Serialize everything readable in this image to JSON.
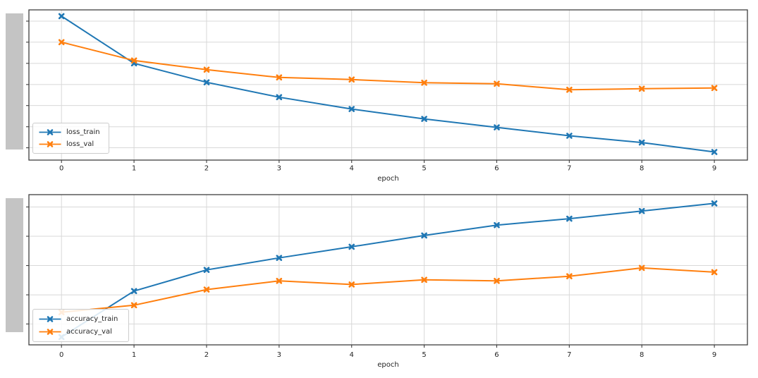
{
  "figure": {
    "background": "#ffffff",
    "colors": {
      "train_series": "#1f77b4",
      "val_series": "#ff7f0e",
      "grid": "#d8d8d8",
      "spine": "#3f3f3f",
      "tick_text": "#262626",
      "legend_border": "#cccccc",
      "redaction_bar": "#c4c4c4"
    }
  },
  "chart_data": [
    {
      "name": "loss",
      "type": "line",
      "title": "",
      "xlabel": "epoch",
      "ylabel": "",
      "grid": true,
      "legend_position": "lower left",
      "x": [
        0,
        1,
        2,
        3,
        4,
        5,
        6,
        7,
        8,
        9
      ],
      "x_tick_labels": [
        "0",
        "1",
        "2",
        "3",
        "4",
        "5",
        "6",
        "7",
        "8",
        "9"
      ],
      "y_tick_labels": [],
      "ylim": [
        0,
        1
      ],
      "y_gridlines": [
        0.082,
        0.222,
        0.363,
        0.503,
        0.644,
        0.785,
        0.925
      ],
      "series": [
        {
          "name": "loss_train",
          "color": "#1f77b4",
          "marker": "X",
          "values": [
            0.958,
            0.644,
            0.518,
            0.419,
            0.34,
            0.274,
            0.218,
            0.162,
            0.117,
            0.054
          ]
        },
        {
          "name": "loss_val",
          "color": "#ff7f0e",
          "marker": "X",
          "values": [
            0.785,
            0.663,
            0.602,
            0.55,
            0.536,
            0.515,
            0.508,
            0.468,
            0.475,
            0.48
          ]
        }
      ]
    },
    {
      "name": "accuracy",
      "type": "line",
      "title": "",
      "xlabel": "epoch",
      "ylabel": "",
      "grid": true,
      "legend_position": "lower left",
      "x": [
        0,
        1,
        2,
        3,
        4,
        5,
        6,
        7,
        8,
        9
      ],
      "x_tick_labels": [
        "0",
        "1",
        "2",
        "3",
        "4",
        "5",
        "6",
        "7",
        "8",
        "9"
      ],
      "y_tick_labels": [],
      "ylim": [
        0,
        1
      ],
      "y_gridlines": [
        0.139,
        0.333,
        0.528,
        0.723,
        0.918
      ],
      "series": [
        {
          "name": "accuracy_train",
          "color": "#1f77b4",
          "marker": "X",
          "values": [
            0.052,
            0.358,
            0.499,
            0.579,
            0.653,
            0.728,
            0.797,
            0.84,
            0.891,
            0.942
          ]
        },
        {
          "name": "accuracy_val",
          "color": "#ff7f0e",
          "marker": "X",
          "values": [
            0.217,
            0.264,
            0.368,
            0.426,
            0.402,
            0.433,
            0.426,
            0.457,
            0.512,
            0.484
          ]
        }
      ]
    }
  ]
}
